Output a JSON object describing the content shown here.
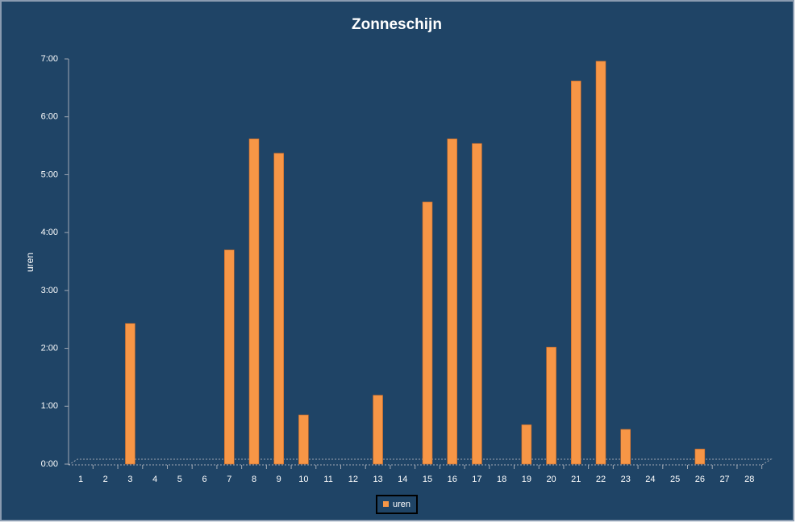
{
  "chart_data": {
    "type": "bar",
    "title": "Zonneschijn",
    "y_label": "uren",
    "categories": [
      "1",
      "2",
      "3",
      "4",
      "5",
      "6",
      "7",
      "8",
      "9",
      "10",
      "11",
      "12",
      "13",
      "14",
      "15",
      "16",
      "17",
      "18",
      "19",
      "20",
      "21",
      "22",
      "23",
      "24",
      "25",
      "26",
      "27",
      "28"
    ],
    "series": [
      {
        "name": "uren",
        "color": "#f79646",
        "values": [
          null,
          null,
          2.43,
          null,
          null,
          null,
          3.7,
          5.62,
          5.37,
          0.85,
          null,
          null,
          1.19,
          null,
          4.53,
          5.62,
          5.54,
          null,
          0.68,
          2.02,
          6.62,
          6.96,
          0.6,
          null,
          null,
          0.26,
          null,
          null
        ]
      }
    ],
    "ylim": [
      0,
      7
    ],
    "yticks": [
      {
        "value": 0,
        "label": "0:00"
      },
      {
        "value": 1,
        "label": "1:00"
      },
      {
        "value": 2,
        "label": "2:00"
      },
      {
        "value": 3,
        "label": "3:00"
      },
      {
        "value": 4,
        "label": "4:00"
      },
      {
        "value": 5,
        "label": "5:00"
      },
      {
        "value": 6,
        "label": "6:00"
      },
      {
        "value": 7,
        "label": "7:00"
      }
    ],
    "grid": false,
    "legend": "bottom"
  }
}
